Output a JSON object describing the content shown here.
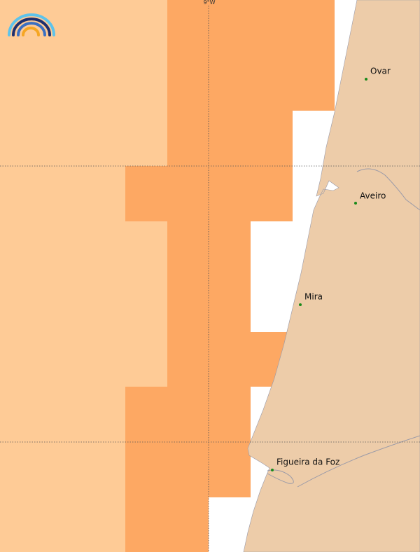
{
  "map": {
    "graticule_label": "9°W",
    "places": [
      {
        "name": "Ovar"
      },
      {
        "name": "Aveiro"
      },
      {
        "name": "Mira"
      },
      {
        "name": "Figueira da Foz"
      }
    ]
  }
}
